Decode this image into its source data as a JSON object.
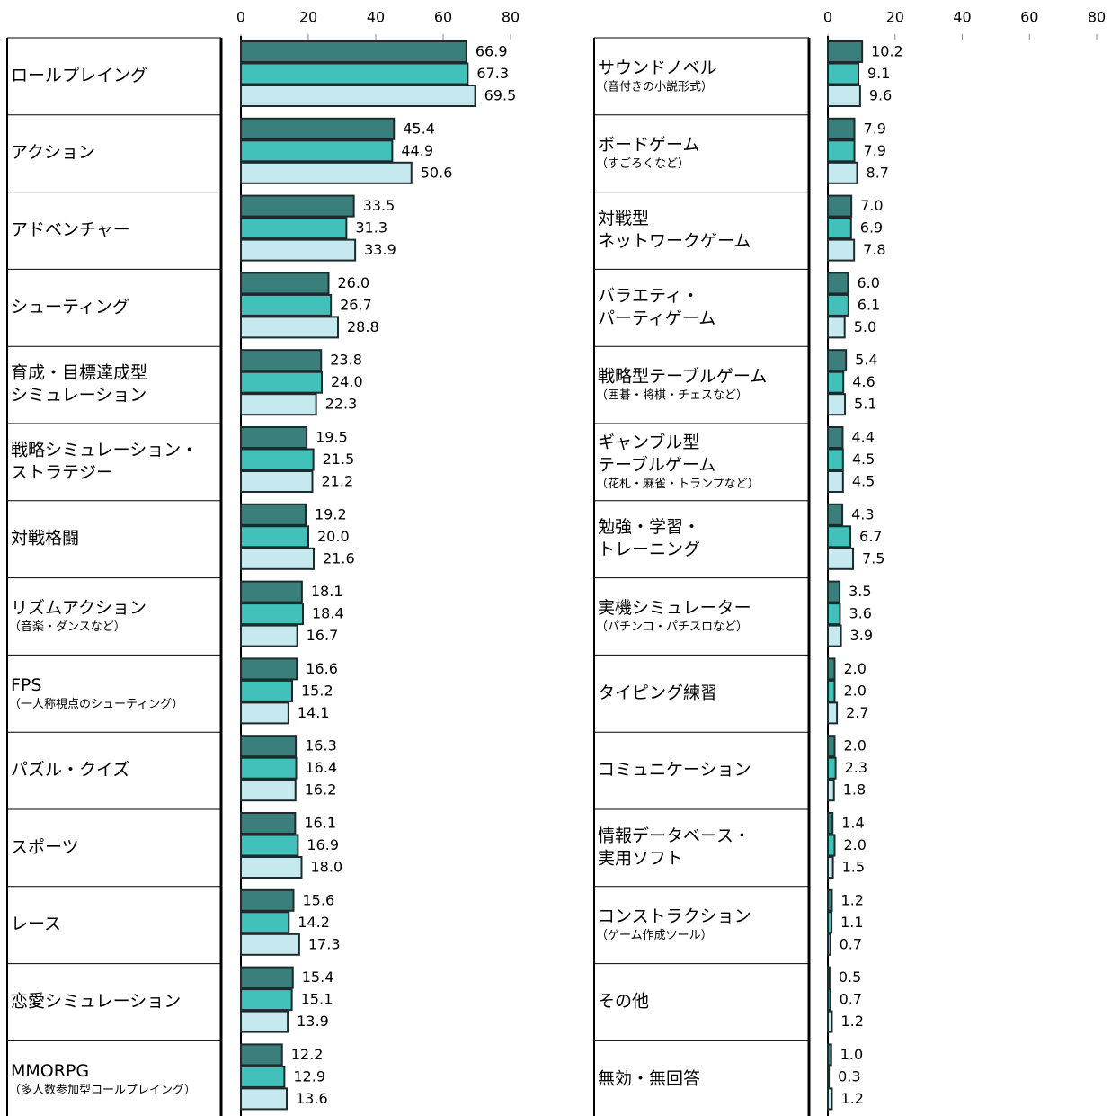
{
  "chart_data": [
    {
      "type": "bar",
      "orientation": "horizontal",
      "xlim": [
        0,
        80
      ],
      "xticks": [
        0,
        20,
        40,
        60,
        80
      ],
      "categories": [
        [
          "ロールプレイング"
        ],
        [
          "アクション"
        ],
        [
          "アドベンチャー"
        ],
        [
          "シューティング"
        ],
        [
          "育成・目標達成型",
          "シミュレーション"
        ],
        [
          "戦略シミュレーション・",
          "ストラテジー"
        ],
        [
          "対戦格闘"
        ],
        [
          "リズムアクション"
        ],
        [
          "FPS"
        ],
        [
          "パズル・クイズ"
        ],
        [
          "スポーツ"
        ],
        [
          "レース"
        ],
        [
          "恋愛シミュレーション"
        ],
        [
          "MMORPG"
        ]
      ],
      "category_notes": [
        null,
        null,
        null,
        null,
        null,
        null,
        null,
        "（音楽・ダンスなど）",
        "（一人称視点のシューティング）",
        null,
        null,
        null,
        null,
        "（多人数参加型ロールプレイング）"
      ],
      "series": [
        {
          "color": "#3a7f7c",
          "values": [
            66.9,
            45.4,
            33.5,
            26.0,
            23.8,
            19.5,
            19.2,
            18.1,
            16.6,
            16.3,
            16.1,
            15.6,
            15.4,
            12.2
          ],
          "value_labels": [
            "66.9",
            "45.4",
            "33.5",
            "26.0",
            "23.8",
            "19.5",
            "19.2",
            "18.1",
            "16.6",
            "16.3",
            "16.1",
            "15.6",
            "15.4",
            "12.2"
          ]
        },
        {
          "color": "#42c1ba",
          "values": [
            67.3,
            44.9,
            31.3,
            26.7,
            24.0,
            21.5,
            20.0,
            18.4,
            15.2,
            16.4,
            16.9,
            14.2,
            15.1,
            12.9
          ],
          "value_labels": [
            "67.3",
            "44.9",
            "31.3",
            "26.7",
            "24.0",
            "21.5",
            "20.0",
            "18.4",
            "15.2",
            "16.4",
            "16.9",
            "14.2",
            "15.1",
            "12.9"
          ]
        },
        {
          "color": "#c6e8ef",
          "values": [
            69.5,
            50.6,
            33.9,
            28.8,
            22.3,
            21.2,
            21.6,
            16.7,
            14.1,
            16.2,
            18.0,
            17.3,
            13.9,
            13.6
          ],
          "value_labels": [
            "69.5",
            "50.6",
            "33.9",
            "28.8",
            "22.3",
            "21.2",
            "21.6",
            "16.7",
            "14.1",
            "16.2",
            "18.0",
            "17.3",
            "13.9",
            "13.6"
          ]
        }
      ]
    },
    {
      "type": "bar",
      "orientation": "horizontal",
      "xlim": [
        0,
        80
      ],
      "xticks": [
        0,
        20,
        40,
        60,
        80
      ],
      "categories": [
        [
          "サウンドノベル"
        ],
        [
          "ボードゲーム"
        ],
        [
          "対戦型",
          "ネットワークゲーム"
        ],
        [
          "バラエティ・",
          "パーティゲーム"
        ],
        [
          "戦略型テーブルゲーム"
        ],
        [
          "ギャンブル型",
          "テーブルゲーム"
        ],
        [
          "勉強・学習・",
          "トレーニング"
        ],
        [
          "実機シミュレーター"
        ],
        [
          "タイピング練習"
        ],
        [
          "コミュニケーション"
        ],
        [
          "情報データベース・",
          "実用ソフト"
        ],
        [
          "コンストラクション"
        ],
        [
          "その他"
        ],
        [
          "無効・無回答"
        ]
      ],
      "category_notes": [
        "（音付きの小説形式）",
        "（すごろくなど）",
        null,
        null,
        "（囲碁・将棋・チェスなど）",
        "（花札・麻雀・トランプなど）",
        null,
        "（パチンコ・パチスロなど）",
        null,
        null,
        null,
        "（ゲーム作成ツール）",
        null,
        null
      ],
      "series": [
        {
          "color": "#3a7f7c",
          "values": [
            10.2,
            7.9,
            7.0,
            6.0,
            5.4,
            4.4,
            4.3,
            3.5,
            2.0,
            2.0,
            1.4,
            1.2,
            0.5,
            1.0
          ],
          "value_labels": [
            "10.2",
            "7.9",
            "7.0",
            "6.0",
            "5.4",
            "4.4",
            "4.3",
            "3.5",
            "2.0",
            "2.0",
            "1.4",
            "1.2",
            "0.5",
            "1.0"
          ]
        },
        {
          "color": "#42c1ba",
          "values": [
            9.1,
            7.9,
            6.9,
            6.1,
            4.6,
            4.5,
            6.7,
            3.6,
            2.0,
            2.3,
            2.0,
            1.1,
            0.7,
            0.3
          ],
          "value_labels": [
            "9.1",
            "7.9",
            "6.9",
            "6.1",
            "4.6",
            "4.5",
            "6.7",
            "3.6",
            "2.0",
            "2.3",
            "2.0",
            "1.1",
            "0.7",
            "0.3"
          ]
        },
        {
          "color": "#c6e8ef",
          "values": [
            9.6,
            8.7,
            7.8,
            5.0,
            5.1,
            4.5,
            7.5,
            3.9,
            2.7,
            1.8,
            1.5,
            0.7,
            1.2,
            1.2
          ],
          "value_labels": [
            "9.6",
            "8.7",
            "7.8",
            "5.0",
            "5.1",
            "4.5",
            "7.5",
            "3.9",
            "2.7",
            "1.8",
            "1.5",
            "0.7",
            "1.2",
            "1.2"
          ]
        }
      ]
    }
  ]
}
